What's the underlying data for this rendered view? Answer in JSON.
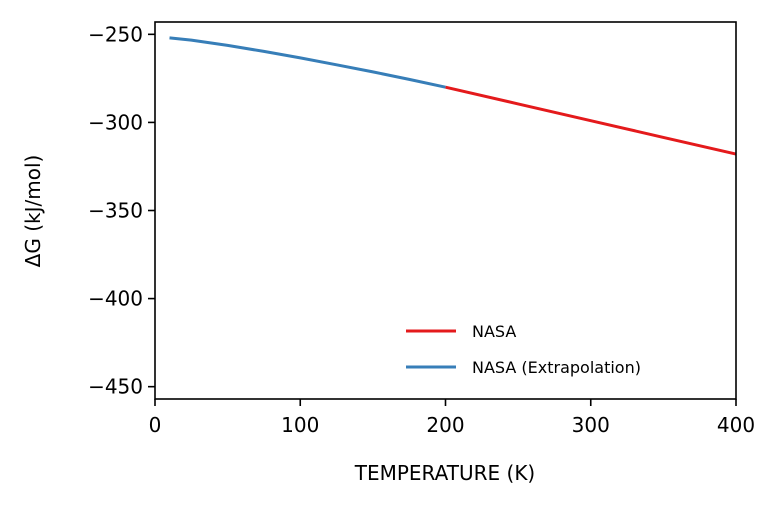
{
  "chart_data": {
    "type": "line",
    "title": "",
    "xlabel": "TEMPERATURE (K)",
    "ylabel": "ΔG (kJ/mol)",
    "xlim": [
      0,
      400
    ],
    "ylim": [
      -457,
      -243
    ],
    "xticks": [
      0,
      100,
      200,
      300,
      400
    ],
    "xtick_labels": [
      "0",
      "100",
      "200",
      "300",
      "400"
    ],
    "yticks": [
      -250,
      -300,
      -350,
      -400,
      -450
    ],
    "ytick_labels": [
      "−250",
      "−300",
      "−350",
      "−400",
      "−450"
    ],
    "grid": false,
    "legend_position": "lower-right",
    "series": [
      {
        "name": "NASA",
        "color": "#e41a1c",
        "x": [
          200,
          250,
          300,
          350,
          400
        ],
        "y": [
          -280,
          -289.5,
          -299,
          -308.5,
          -318
        ]
      },
      {
        "name": "NASA (Extrapolation)",
        "color": "#377eb8",
        "x": [
          10,
          25,
          50,
          75,
          100,
          125,
          150,
          175,
          200
        ],
        "y": [
          -252,
          -253.3,
          -256.3,
          -259.7,
          -263.4,
          -267.3,
          -271.3,
          -275.6,
          -280
        ]
      }
    ]
  }
}
